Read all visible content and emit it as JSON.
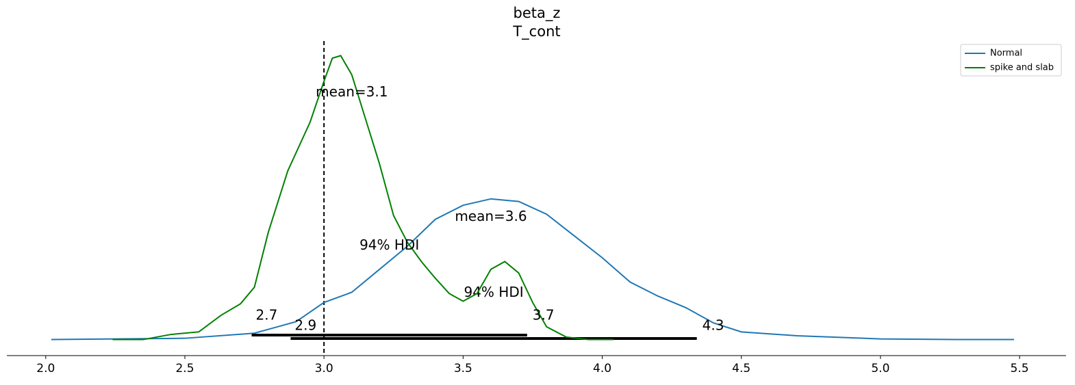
{
  "chart_data": {
    "type": "density",
    "title": "beta_z",
    "subtitle": "T_cont",
    "ref_val": 3.0,
    "hdi_label": "94% HDI",
    "legend": "upper right",
    "xlim": [
      1.87,
      5.65
    ],
    "ylim": [
      -0.12,
      2.5
    ],
    "xticks": [
      {
        "value": 2.0,
        "label": "2.0"
      },
      {
        "value": 2.5,
        "label": "2.5"
      },
      {
        "value": 3.0,
        "label": "3.0"
      },
      {
        "value": 3.5,
        "label": "3.5"
      },
      {
        "value": 4.0,
        "label": "4.0"
      },
      {
        "value": 4.5,
        "label": "4.5"
      },
      {
        "value": 5.0,
        "label": "5.0"
      },
      {
        "value": 5.5,
        "label": "5.5"
      }
    ],
    "series": [
      {
        "name": "Normal",
        "color": "#1f77b4",
        "x": [
          2.02,
          2.5,
          2.75,
          2.9,
          3.0,
          3.1,
          3.2,
          3.3,
          3.4,
          3.5,
          3.6,
          3.7,
          3.8,
          3.9,
          4.0,
          4.1,
          4.2,
          4.3,
          4.4,
          4.5,
          4.7,
          5.0,
          5.3,
          5.48
        ],
        "values": [
          0,
          0.01,
          0.05,
          0.14,
          0.29,
          0.37,
          0.55,
          0.73,
          0.94,
          1.05,
          1.1,
          1.08,
          0.98,
          0.81,
          0.64,
          0.45,
          0.34,
          0.25,
          0.13,
          0.06,
          0.03,
          0.005,
          0,
          0
        ],
        "mean": 3.6,
        "mean_label": "mean=3.6",
        "hdi": [
          2.88,
          4.34
        ],
        "hdi_labels": [
          "2.9",
          "4.3"
        ]
      },
      {
        "name": "spike and slab",
        "color": "#008000",
        "x": [
          2.24,
          2.35,
          2.45,
          2.55,
          2.63,
          2.7,
          2.75,
          2.8,
          2.87,
          2.95,
          3.0,
          3.03,
          3.06,
          3.1,
          3.15,
          3.2,
          3.25,
          3.3,
          3.35,
          3.4,
          3.45,
          3.5,
          3.55,
          3.6,
          3.65,
          3.7,
          3.75,
          3.8,
          3.87,
          3.95,
          4.04
        ],
        "values": [
          0,
          0,
          0.04,
          0.06,
          0.19,
          0.28,
          0.41,
          0.84,
          1.32,
          1.7,
          2.02,
          2.2,
          2.22,
          2.07,
          1.72,
          1.37,
          0.97,
          0.76,
          0.61,
          0.48,
          0.36,
          0.3,
          0.36,
          0.55,
          0.61,
          0.52,
          0.29,
          0.1,
          0.02,
          0,
          0
        ],
        "mean": 3.1,
        "mean_label": "mean=3.1",
        "hdi": [
          2.74,
          3.73
        ],
        "hdi_labels": [
          "2.7",
          "3.7"
        ]
      }
    ]
  }
}
